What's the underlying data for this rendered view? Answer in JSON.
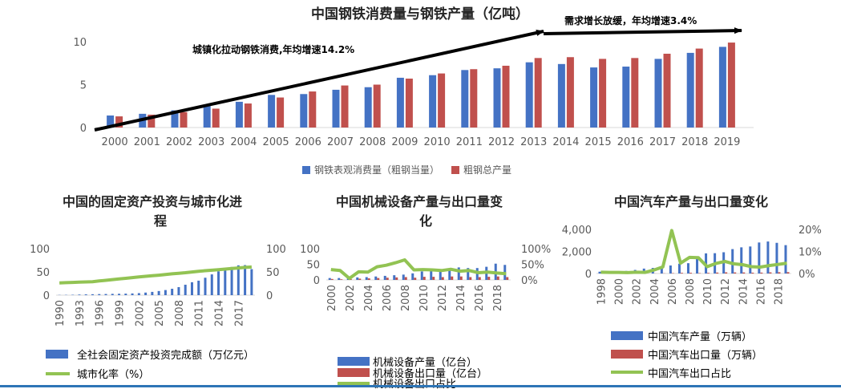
{
  "colors": {
    "blue": "#4472c4",
    "red": "#c0504d",
    "green": "#92c353",
    "axis": "#d9d9d9",
    "text": "#595959",
    "title": "#262626",
    "arrow": "#000000"
  },
  "chart_data": [
    {
      "type": "bar",
      "title": "中国钢铁消费量与钢铁产量（亿吨）",
      "categories": [
        "2000",
        "2001",
        "2002",
        "2003",
        "2004",
        "2005",
        "2006",
        "2007",
        "2008",
        "2009",
        "2010",
        "2011",
        "2012",
        "2013",
        "2014",
        "2015",
        "2016",
        "2017",
        "2018",
        "2019"
      ],
      "series": [
        {
          "name": "钢铁表观消费量（粗钢当量）",
          "values": [
            1.4,
            1.6,
            2.0,
            2.5,
            3.0,
            3.8,
            3.9,
            4.4,
            4.7,
            5.8,
            6.1,
            6.7,
            6.9,
            7.6,
            7.4,
            7.0,
            7.1,
            8.0,
            8.7,
            9.4
          ]
        },
        {
          "name": "粗钢总产量",
          "values": [
            1.3,
            1.5,
            1.8,
            2.2,
            2.8,
            3.5,
            4.2,
            4.9,
            5.0,
            5.7,
            6.3,
            6.8,
            7.2,
            8.1,
            8.2,
            8.0,
            8.1,
            8.6,
            9.2,
            9.9
          ]
        }
      ],
      "ylim": [
        0,
        10
      ],
      "yticks": [
        "0",
        "5",
        "10"
      ],
      "annotations": [
        "城镇化拉动钢铁消费,年均增速14.2%",
        "需求增长放缓，年均增速3.4%"
      ]
    },
    {
      "type": "bar",
      "title": "中国的固定资产投资与城市化进程",
      "categories": [
        "1990",
        "1991",
        "1992",
        "1993",
        "1994",
        "1995",
        "1996",
        "1997",
        "1998",
        "1999",
        "2000",
        "2001",
        "2002",
        "2003",
        "2004",
        "2005",
        "2006",
        "2007",
        "2008",
        "2009",
        "2010",
        "2011",
        "2012",
        "2013",
        "2014",
        "2015",
        "2016",
        "2017",
        "2018",
        "2019"
      ],
      "xticks": [
        "1990",
        "1993",
        "1996",
        "1999",
        "2002",
        "2005",
        "2008",
        "2011",
        "2014",
        "2017"
      ],
      "series": [
        {
          "name": "全社会固定资产投资完成额（万亿元）",
          "axis": "left",
          "values": [
            0.45,
            0.56,
            0.81,
            1.31,
            1.71,
            2.0,
            2.3,
            2.49,
            2.84,
            2.99,
            3.29,
            3.72,
            4.35,
            5.55,
            7.05,
            8.88,
            10.99,
            13.73,
            17.28,
            22.46,
            27.81,
            31.15,
            37.47,
            44.63,
            51.2,
            56.2,
            60.6,
            64.1,
            64.6,
            56.0
          ]
        },
        {
          "name": "城市化率（%）",
          "axis": "right",
          "type": "line",
          "values": [
            26.4,
            26.9,
            27.5,
            28.0,
            28.5,
            29.0,
            30.5,
            31.9,
            33.4,
            34.8,
            36.2,
            37.7,
            39.1,
            40.5,
            41.8,
            43.0,
            44.3,
            45.9,
            47.0,
            48.3,
            49.9,
            51.3,
            52.6,
            53.7,
            54.8,
            56.1,
            57.4,
            58.5,
            59.6,
            60.6
          ]
        }
      ],
      "ylim_left": [
        0,
        100
      ],
      "ylim_right": [
        0,
        100
      ],
      "yticks_left": [
        "0",
        "50",
        "100"
      ],
      "yticks_right": [
        "0",
        "50",
        "100"
      ]
    },
    {
      "type": "bar",
      "title": "中国机械设备产量与出口量变化",
      "categories": [
        "2000",
        "2001",
        "2002",
        "2003",
        "2004",
        "2005",
        "2006",
        "2007",
        "2008",
        "2009",
        "2010",
        "2011",
        "2012",
        "2013",
        "2014",
        "2015",
        "2016",
        "2017",
        "2018",
        "2019"
      ],
      "xticks": [
        "2000",
        "2002",
        "2004",
        "2006",
        "2008",
        "2010",
        "2012",
        "2014",
        "2016",
        "2018"
      ],
      "series": [
        {
          "name": "机械设备产量（亿台）",
          "axis": "left",
          "values": [
            6,
            6,
            7,
            8,
            9,
            11,
            13,
            15,
            17,
            21,
            27,
            29,
            32,
            35,
            40,
            38,
            38,
            42,
            52,
            48
          ]
        },
        {
          "name": "机械设备出口量（亿台）",
          "axis": "left",
          "values": [
            3,
            2,
            3,
            4,
            5,
            6,
            7,
            8,
            9,
            7,
            10,
            10,
            9,
            11,
            11,
            9,
            9,
            10,
            11,
            9
          ]
        },
        {
          "name": "机械设备出口占比",
          "axis": "right",
          "type": "line",
          "values": [
            33,
            30,
            5,
            26,
            25,
            42,
            47,
            55,
            64,
            32,
            33,
            32,
            30,
            34,
            28,
            30,
            23,
            25,
            22,
            20
          ]
        }
      ],
      "ylim_left": [
        0,
        100
      ],
      "ylim_right": [
        0,
        100
      ],
      "yticks_left": [
        "0",
        "50",
        "100"
      ],
      "yticks_right": [
        "0%",
        "50%",
        "100%"
      ]
    },
    {
      "type": "bar",
      "title": "中国汽车产量与出口量变化",
      "categories": [
        "1998",
        "1999",
        "2000",
        "2001",
        "2002",
        "2003",
        "2004",
        "2005",
        "2006",
        "2007",
        "2008",
        "2009",
        "2010",
        "2011",
        "2012",
        "2013",
        "2014",
        "2015",
        "2016",
        "2017",
        "2018",
        "2019"
      ],
      "xticks": [
        "1998",
        "2000",
        "2002",
        "2004",
        "2006",
        "2008",
        "2010",
        "2012",
        "2014",
        "2016",
        "2018"
      ],
      "series": [
        {
          "name": "中国汽车产量（万辆）",
          "axis": "left",
          "values": [
            163,
            183,
            207,
            234,
            325,
            444,
            507,
            571,
            728,
            888,
            935,
            1379,
            1826,
            1842,
            1927,
            2212,
            2372,
            2450,
            2812,
            2902,
            2781,
            2572
          ]
        },
        {
          "name": "中国汽车出口量（万辆）",
          "axis": "left",
          "values": [
            1,
            1,
            1,
            1,
            2,
            2,
            8,
            17,
            34,
            61,
            68,
            37,
            57,
            85,
            106,
            98,
            95,
            76,
            81,
            104,
            115,
            122
          ]
        },
        {
          "name": "中国汽车出口占比",
          "axis": "right",
          "type": "line",
          "values": [
            0.6,
            0.5,
            0.5,
            0.4,
            0.6,
            0.5,
            1.6,
            3.0,
            19.5,
            4.7,
            7.3,
            7.2,
            3.1,
            4.6,
            5.5,
            4.4,
            4.0,
            3.1,
            2.9,
            3.6,
            4.1,
            4.7
          ]
        }
      ],
      "ylim_left": [
        0,
        4000
      ],
      "ylim_right": [
        0,
        20
      ],
      "yticks_left": [
        "0",
        "2,000",
        "4,000"
      ],
      "yticks_right": [
        "0%",
        "10%",
        "20%"
      ]
    }
  ]
}
